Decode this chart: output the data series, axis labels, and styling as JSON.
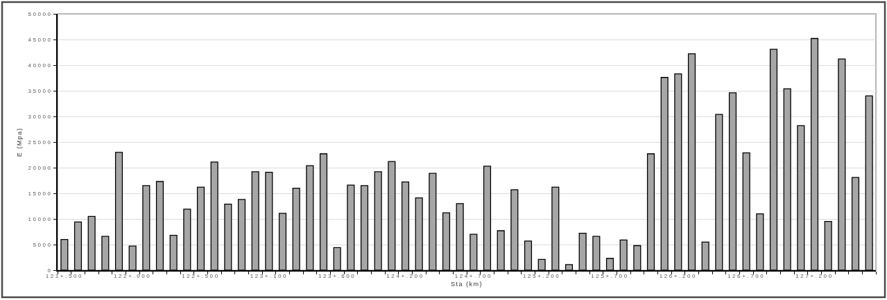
{
  "chart_data": {
    "type": "bar",
    "xlabel": "Sta (km)",
    "ylabel": "E (Mpa)",
    "categories": [
      "121+.500",
      null,
      null,
      null,
      null,
      "122+.000",
      null,
      null,
      null,
      null,
      "122+.500",
      null,
      null,
      null,
      null,
      "123+.100",
      null,
      null,
      null,
      null,
      "123+.600",
      null,
      null,
      null,
      null,
      "124+.200",
      null,
      null,
      null,
      null,
      "124+.700",
      null,
      null,
      null,
      null,
      "125+.200",
      null,
      null,
      null,
      null,
      "125+.700",
      null,
      null,
      null,
      null,
      "126+.200",
      null,
      null,
      null,
      null,
      "126+.700",
      null,
      null,
      null,
      null,
      "127+.200",
      null,
      null,
      null,
      null
    ],
    "values": [
      6000,
      9400,
      10500,
      6600,
      23000,
      4700,
      16500,
      17300,
      6800,
      11900,
      16200,
      21100,
      12900,
      13800,
      19200,
      19100,
      11100,
      16000,
      20400,
      22700,
      4400,
      16600,
      16500,
      19200,
      21200,
      17200,
      14100,
      18900,
      11200,
      13000,
      7000,
      20300,
      7700,
      15700,
      5700,
      2100,
      16200,
      1100,
      7200,
      6600,
      2300,
      5900,
      4800,
      22700,
      37600,
      38300,
      42200,
      5500,
      30400,
      34600,
      22900,
      11000,
      43100,
      35400,
      28200,
      45200,
      9500,
      41200,
      18100,
      34000
    ],
    "color": "#a6a6a6",
    "ylim": [
      0,
      50000
    ],
    "yticks": [
      0,
      5000,
      10000,
      15000,
      20000,
      25000,
      30000,
      35000,
      40000,
      45000,
      50000
    ],
    "grid": "y"
  }
}
